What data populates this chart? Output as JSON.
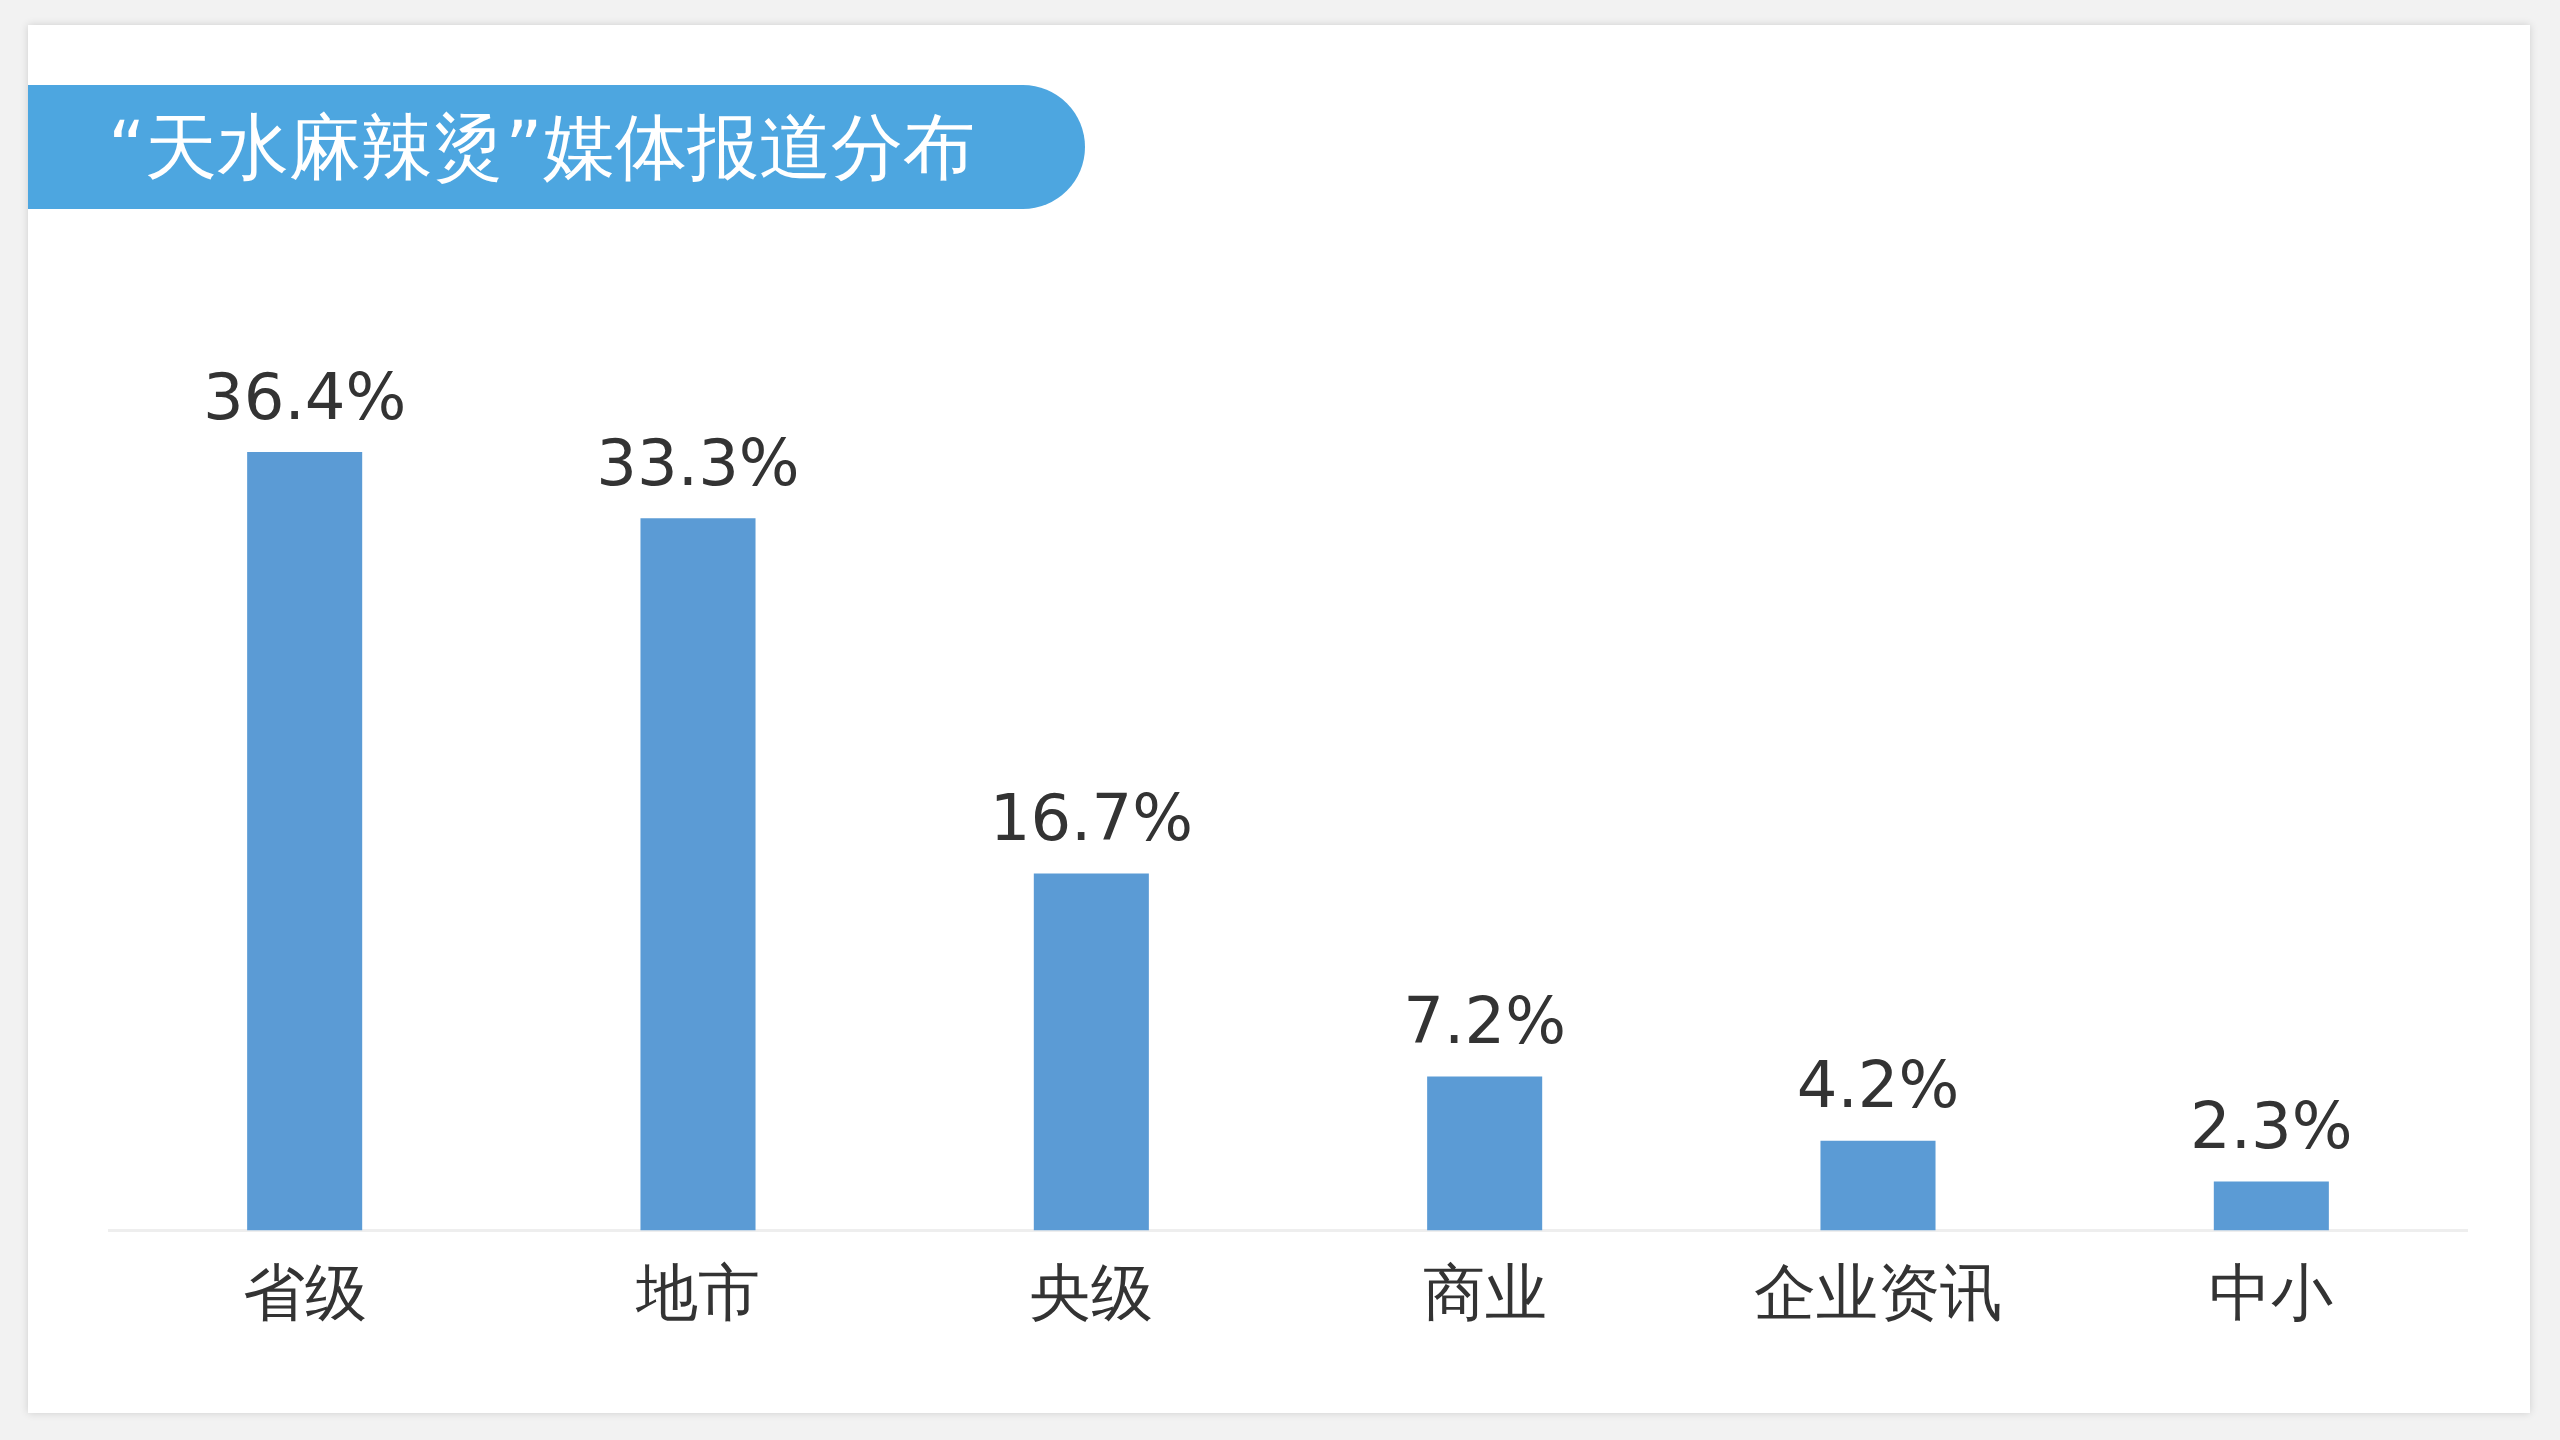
{
  "chart_data": {
    "type": "bar",
    "title": "“天水麻辣烫”媒体报道分布",
    "categories": [
      "省级",
      "地市",
      "央级",
      "商业",
      "企业资讯",
      "中小"
    ],
    "values": [
      36.4,
      33.3,
      16.7,
      7.2,
      4.2,
      2.3
    ],
    "value_labels": [
      "36.4%",
      "33.3%",
      "16.7%",
      "7.2%",
      "4.2%",
      "2.3%"
    ],
    "color": "#5b9bd5",
    "grid": false,
    "legend": false
  }
}
